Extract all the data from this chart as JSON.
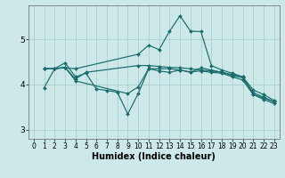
{
  "xlabel": "Humidex (Indice chaleur)",
  "ylabel": "",
  "bg_color": "#cce8e8",
  "line_color": "#1a6b6b",
  "grid_color": "#aad0d0",
  "xlim": [
    -0.5,
    23.5
  ],
  "ylim": [
    2.8,
    5.75
  ],
  "yticks": [
    3,
    4,
    5
  ],
  "xticks": [
    0,
    1,
    2,
    3,
    4,
    5,
    6,
    7,
    8,
    9,
    10,
    11,
    12,
    13,
    14,
    15,
    16,
    17,
    18,
    19,
    20,
    21,
    22,
    23
  ],
  "lines": [
    {
      "x": [
        1,
        2,
        3,
        4,
        10,
        11,
        12,
        13,
        14,
        15,
        16,
        17,
        18,
        19,
        20,
        21,
        22,
        23
      ],
      "y": [
        3.93,
        4.35,
        4.37,
        4.35,
        4.67,
        4.87,
        4.77,
        5.18,
        5.52,
        5.18,
        5.17,
        4.42,
        4.32,
        4.25,
        4.17,
        3.88,
        3.78,
        3.65
      ]
    },
    {
      "x": [
        1,
        2,
        3,
        4,
        5,
        6,
        7,
        8,
        9,
        10,
        11,
        12,
        13,
        14,
        15,
        16,
        17,
        18,
        19,
        20,
        21,
        22,
        23
      ],
      "y": [
        4.35,
        4.35,
        4.48,
        4.17,
        4.25,
        3.9,
        3.87,
        3.83,
        3.35,
        3.8,
        4.35,
        4.3,
        4.27,
        4.32,
        4.27,
        4.37,
        4.32,
        4.27,
        4.22,
        4.17,
        3.78,
        3.7,
        3.62
      ]
    },
    {
      "x": [
        1,
        2,
        3,
        4,
        5,
        10,
        11,
        12,
        13,
        14,
        15,
        16,
        17,
        18,
        19,
        20,
        21,
        22,
        23
      ],
      "y": [
        4.35,
        4.35,
        4.38,
        4.12,
        4.27,
        4.42,
        4.42,
        4.4,
        4.38,
        4.37,
        4.35,
        4.32,
        4.3,
        4.27,
        4.2,
        4.15,
        3.82,
        3.72,
        3.62
      ]
    },
    {
      "x": [
        1,
        2,
        3,
        4,
        9,
        10,
        11,
        12,
        13,
        14,
        15,
        16,
        17,
        18,
        19,
        20,
        21,
        22,
        23
      ],
      "y": [
        4.35,
        4.35,
        4.38,
        4.08,
        3.8,
        3.95,
        4.35,
        4.35,
        4.35,
        4.32,
        4.28,
        4.3,
        4.27,
        4.25,
        4.17,
        4.1,
        3.78,
        3.67,
        3.58
      ]
    }
  ],
  "tick_fontsize": 5.5,
  "xlabel_fontsize": 7.0
}
